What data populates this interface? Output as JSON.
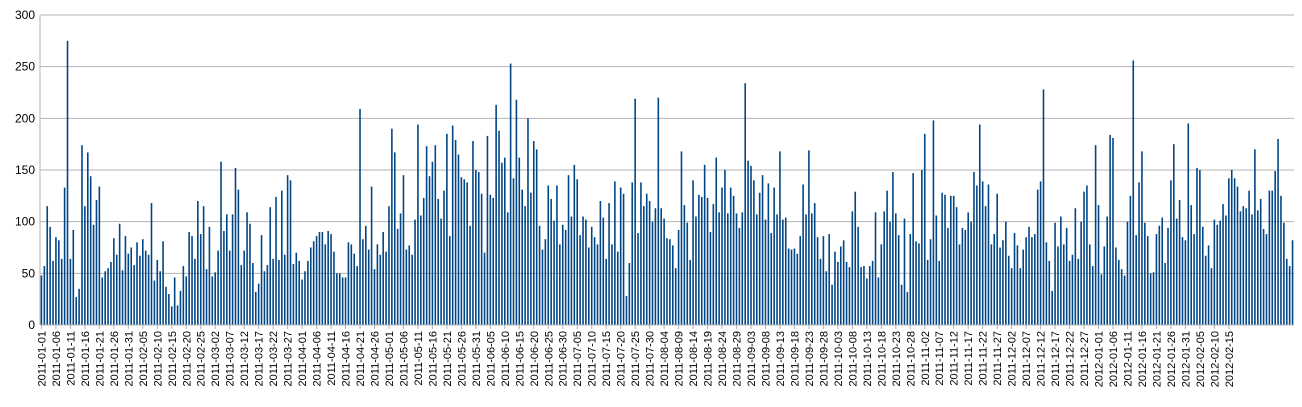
{
  "chart_data": {
    "type": "bar",
    "title": "",
    "xlabel": "",
    "ylabel": "",
    "ylim": [
      0,
      300
    ],
    "yticks": [
      0,
      50,
      100,
      150,
      200,
      250,
      300
    ],
    "grid": "horizontal",
    "legend": "none",
    "bar_color": "#004586",
    "start_date": "2011-01-01",
    "xtick_labels": [
      "2011-01-01",
      "2011-01-06",
      "2011-01-11",
      "2011-01-16",
      "2011-01-21",
      "2011-01-26",
      "2011-01-31",
      "2011-02-05",
      "2011-02-10",
      "2011-02-15",
      "2011-02-20",
      "2011-02-25",
      "2011-03-02",
      "2011-03-07",
      "2011-03-12",
      "2011-03-17",
      "2011-03-22",
      "2011-03-27",
      "2011-04-01",
      "2011-04-06",
      "2011-04-11",
      "2011-04-16",
      "2011-04-21",
      "2011-04-26",
      "2011-05-01",
      "2011-05-06",
      "2011-05-11",
      "2011-05-16",
      "2011-05-21",
      "2011-05-26",
      "2011-05-31",
      "2011-06-05",
      "2011-06-10",
      "2011-06-15",
      "2011-06-20",
      "2011-06-25",
      "2011-06-30",
      "2011-07-05",
      "2011-07-10",
      "2011-07-15",
      "2011-07-20",
      "2011-07-25",
      "2011-07-30",
      "2011-08-04",
      "2011-08-09",
      "2011-08-14",
      "2011-08-19",
      "2011-08-24",
      "2011-08-29",
      "2011-09-03",
      "2011-09-08",
      "2011-09-13",
      "2011-09-18",
      "2011-09-23",
      "2011-09-28",
      "2011-10-03",
      "2011-10-08",
      "2011-10-13",
      "2011-10-18",
      "2011-10-23",
      "2011-10-28",
      "2011-11-02",
      "2011-11-07",
      "2011-11-12",
      "2011-11-17",
      "2011-11-22",
      "2011-11-27",
      "2011-12-02",
      "2011-12-07",
      "2011-12-12",
      "2011-12-17",
      "2011-12-22",
      "2011-12-27",
      "2012-01-01",
      "2012-01-06",
      "2012-01-11",
      "2012-01-16",
      "2012-01-21",
      "2012-01-26",
      "2012-01-31",
      "2012-02-05",
      "2012-02-10",
      "2012-02-15"
    ],
    "values": [
      48,
      57,
      115,
      95,
      62,
      85,
      82,
      64,
      133,
      275,
      64,
      92,
      27,
      35,
      174,
      115,
      167,
      144,
      97,
      121,
      134,
      46,
      52,
      55,
      61,
      84,
      68,
      98,
      53,
      86,
      69,
      75,
      58,
      80,
      67,
      83,
      72,
      68,
      118,
      43,
      63,
      52,
      81,
      37,
      30,
      18,
      46,
      19,
      33,
      57,
      47,
      90,
      86,
      64,
      120,
      88,
      115,
      54,
      95,
      47,
      51,
      72,
      158,
      91,
      107,
      72,
      107,
      152,
      131,
      58,
      72,
      109,
      98,
      60,
      32,
      40,
      87,
      52,
      58,
      114,
      64,
      124,
      63,
      130,
      68,
      145,
      140,
      59,
      70,
      62,
      44,
      52,
      62,
      75,
      81,
      86,
      90,
      90,
      78,
      91,
      88,
      71,
      50,
      50,
      46,
      46,
      80,
      78,
      69,
      57,
      209,
      83,
      96,
      73,
      134,
      54,
      78,
      68,
      90,
      71,
      115,
      190,
      167,
      93,
      108,
      145,
      73,
      77,
      68,
      102,
      194,
      106,
      123,
      173,
      144,
      158,
      174,
      122,
      103,
      130,
      185,
      86,
      193,
      179,
      165,
      143,
      141,
      138,
      96,
      178,
      150,
      148,
      127,
      70,
      183,
      126,
      123,
      213,
      188,
      157,
      162,
      109,
      253,
      142,
      218,
      162,
      131,
      115,
      200,
      128,
      178,
      170,
      96,
      73,
      83,
      135,
      122,
      101,
      135,
      78,
      97,
      92,
      145,
      105,
      155,
      141,
      87,
      105,
      102,
      75,
      95,
      85,
      78,
      120,
      104,
      64,
      118,
      78,
      139,
      71,
      133,
      127,
      28,
      60,
      138,
      219,
      89,
      138,
      115,
      127,
      120,
      100,
      113,
      220,
      113,
      103,
      84,
      83,
      77,
      55,
      92,
      168,
      116,
      99,
      63,
      140,
      105,
      126,
      124,
      155,
      123,
      90,
      117,
      162,
      109,
      133,
      150,
      108,
      133,
      125,
      108,
      94,
      109,
      234,
      159,
      154,
      140,
      107,
      128,
      145,
      102,
      137,
      89,
      133,
      107,
      168,
      102,
      104,
      74,
      73,
      74,
      69,
      86,
      136,
      107,
      169,
      108,
      118,
      85,
      64,
      86,
      52,
      88,
      39,
      71,
      61,
      76,
      82,
      61,
      56,
      110,
      129,
      95,
      56,
      57,
      45,
      57,
      62,
      109,
      46,
      78,
      110,
      130,
      100,
      148,
      108,
      87,
      39,
      103,
      32,
      88,
      147,
      81,
      79,
      150,
      185,
      63,
      83,
      198,
      106,
      62,
      128,
      126,
      94,
      125,
      125,
      114,
      78,
      94,
      92,
      109,
      100,
      148,
      135,
      194,
      139,
      115,
      136,
      78,
      88,
      127,
      75,
      82,
      100,
      67,
      55,
      89,
      77,
      55,
      73,
      85,
      95,
      85,
      88,
      131,
      139,
      228,
      80,
      62,
      33,
      99,
      76,
      105,
      78,
      94,
      62,
      68,
      113,
      64,
      100,
      129,
      135,
      78,
      57,
      174,
      116,
      49,
      76,
      105,
      184,
      181,
      75,
      63,
      54,
      48,
      100,
      125,
      256,
      87,
      138,
      168,
      99,
      86,
      50,
      51,
      88,
      96,
      104,
      60,
      94,
      140,
      175,
      103,
      121,
      85,
      82,
      195,
      116,
      88,
      152,
      150,
      95,
      67,
      77,
      55,
      102,
      97,
      101,
      117,
      106,
      142,
      150,
      142,
      134,
      110,
      115,
      113,
      130,
      107,
      170,
      111,
      122,
      93,
      88,
      130,
      130,
      149,
      180,
      125,
      99,
      64,
      57,
      82
    ]
  }
}
